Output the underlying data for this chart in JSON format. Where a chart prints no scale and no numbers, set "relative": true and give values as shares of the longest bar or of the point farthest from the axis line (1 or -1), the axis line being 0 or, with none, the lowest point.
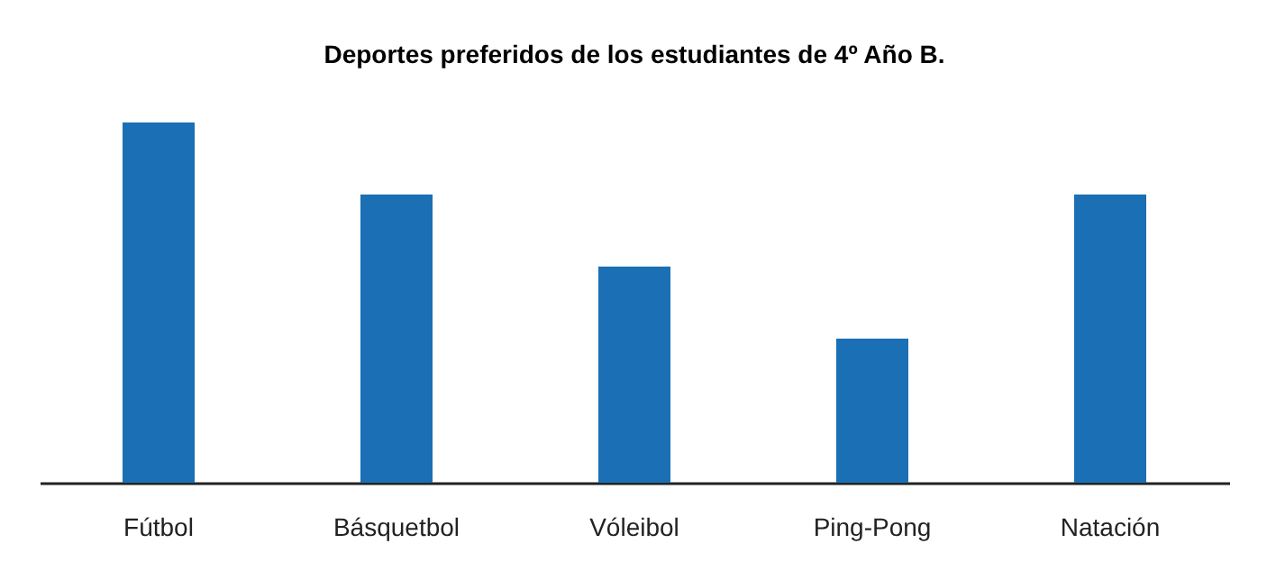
{
  "chart_data": {
    "type": "bar",
    "title": "Deportes preferidos de los estudiantes de 4º Año B.",
    "categories": [
      "Fútbol",
      "Básquetbol",
      "Vóleibol",
      "Ping-Pong",
      "Natación"
    ],
    "values": [
      1,
      0.8,
      0.6,
      0.4,
      0.8
    ],
    "color": "#1a6fb5",
    "relative": true
  }
}
